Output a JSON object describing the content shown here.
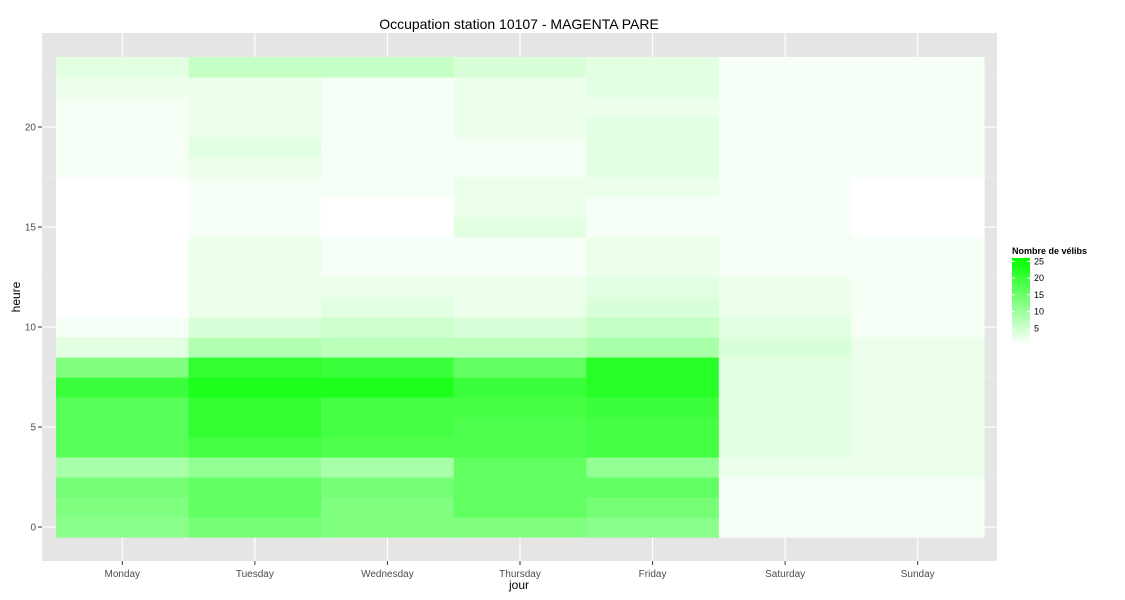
{
  "chart_data": {
    "type": "heatmap",
    "title": "Occupation station 10107 - MAGENTA PARE",
    "xlabel": "jour",
    "ylabel": "heure",
    "x_categories": [
      "Monday",
      "Tuesday",
      "Wednesday",
      "Thursday",
      "Friday",
      "Saturday",
      "Sunday"
    ],
    "y_hours": [
      0,
      1,
      2,
      3,
      4,
      5,
      6,
      7,
      8,
      9,
      10,
      11,
      12,
      13,
      14,
      15,
      16,
      17,
      18,
      19,
      20,
      21,
      22,
      23
    ],
    "y_ticks": [
      0,
      5,
      10,
      15,
      20
    ],
    "ylim": [
      -0.5,
      23.5
    ],
    "grid": true,
    "legend": {
      "title": "Nombre de vélibs",
      "position": "right",
      "range": [
        0,
        26
      ],
      "breaks": [
        5,
        10,
        15,
        20,
        25
      ],
      "low_color": "#ffffff",
      "high_color": "#00ff00"
    },
    "values": [
      [
        12,
        14,
        13,
        13,
        12,
        1,
        1
      ],
      [
        13,
        16,
        13,
        16,
        14,
        1,
        1
      ],
      [
        14,
        16,
        14,
        16,
        16,
        1,
        1
      ],
      [
        9,
        11,
        9,
        16,
        11,
        2,
        2
      ],
      [
        17,
        19,
        18,
        18,
        19,
        3,
        2
      ],
      [
        17,
        21,
        19,
        18,
        19,
        3,
        2
      ],
      [
        17,
        21,
        19,
        19,
        20,
        3,
        2
      ],
      [
        20,
        23,
        23,
        20,
        22,
        3,
        2
      ],
      [
        13,
        21,
        20,
        16,
        22,
        3,
        2
      ],
      [
        3,
        8,
        7,
        7,
        9,
        4,
        2
      ],
      [
        1,
        4,
        5,
        4,
        6,
        3,
        1
      ],
      [
        0,
        2,
        3,
        2,
        4,
        2,
        1
      ],
      [
        0,
        2,
        2,
        2,
        3,
        2,
        1
      ],
      [
        0,
        2,
        1,
        1,
        2,
        1,
        1
      ],
      [
        0,
        2,
        1,
        1,
        2,
        1,
        1
      ],
      [
        0,
        1,
        0,
        3,
        1,
        1,
        0
      ],
      [
        0,
        1,
        0,
        2,
        1,
        1,
        0
      ],
      [
        0,
        1,
        1,
        2,
        2,
        1,
        0
      ],
      [
        1,
        2,
        1,
        1,
        3,
        1,
        1
      ],
      [
        1,
        3,
        1,
        1,
        3,
        1,
        1
      ],
      [
        1,
        2,
        1,
        2,
        3,
        1,
        1
      ],
      [
        1,
        2,
        1,
        2,
        2,
        1,
        1
      ],
      [
        2,
        2,
        1,
        2,
        3,
        1,
        1
      ],
      [
        3,
        6,
        6,
        4,
        3,
        1,
        1
      ]
    ]
  }
}
